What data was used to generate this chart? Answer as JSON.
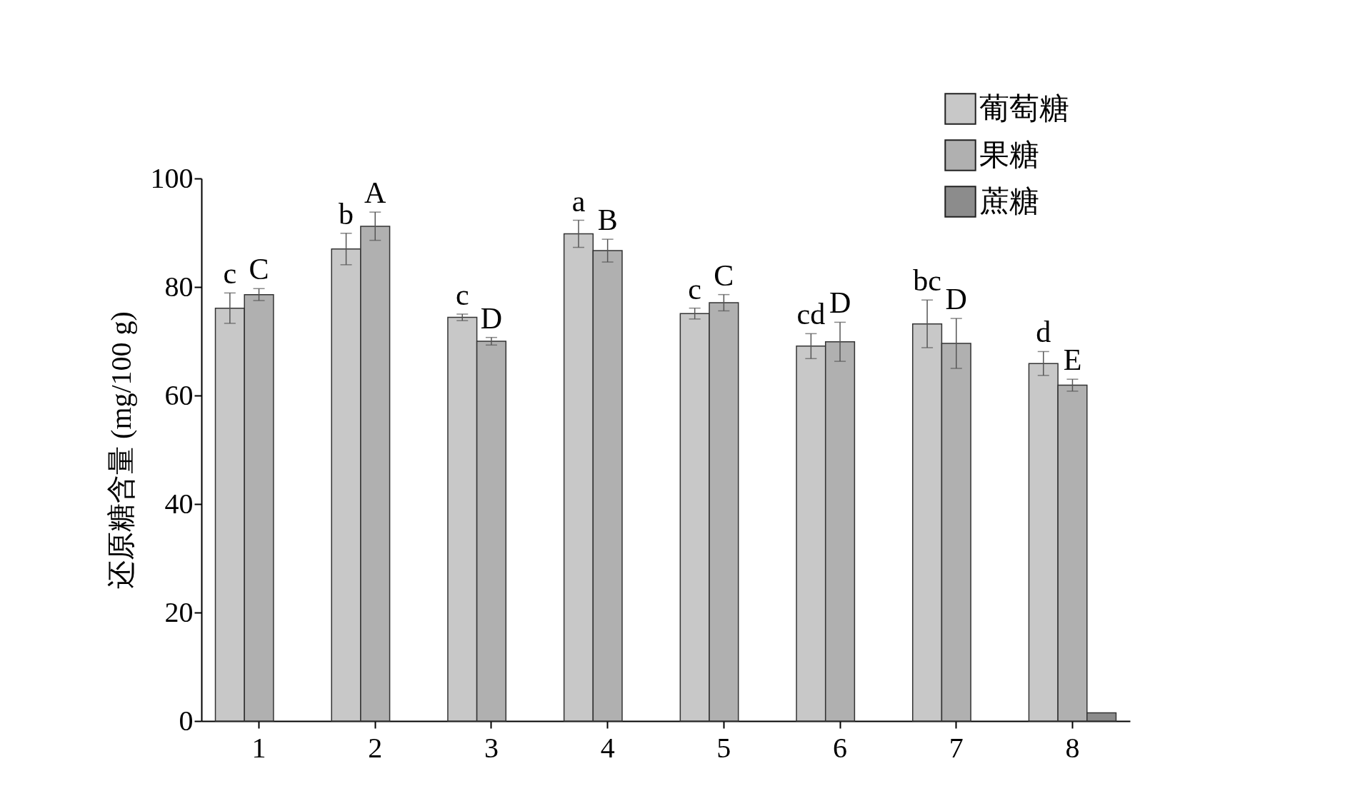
{
  "chart_data": {
    "type": "bar",
    "ylabel": "还原糖含量 (mg/100 g)",
    "categories": [
      "1",
      "2",
      "3",
      "4",
      "5",
      "6",
      "7",
      "8"
    ],
    "series": [
      {
        "name": "葡萄糖",
        "color": "#c8c8c8",
        "values": [
          76.1,
          87.0,
          74.4,
          89.8,
          75.1,
          69.1,
          73.2,
          65.9
        ],
        "errors": [
          2.8,
          2.9,
          0.6,
          2.5,
          1.0,
          2.3,
          4.4,
          2.2
        ]
      },
      {
        "name": "果糖",
        "color": "#b0b0b0",
        "values": [
          78.6,
          91.2,
          70.0,
          86.7,
          77.1,
          69.9,
          69.6,
          61.9
        ],
        "errors": [
          1.1,
          2.6,
          0.7,
          2.1,
          1.5,
          3.6,
          4.6,
          1.1
        ]
      },
      {
        "name": "蔗糖",
        "color": "#8c8c8c",
        "values": [
          null,
          null,
          null,
          null,
          null,
          null,
          null,
          1.5
        ]
      }
    ],
    "ylim": [
      0,
      100
    ],
    "yticks": [
      0,
      20,
      40,
      60,
      80,
      100
    ],
    "grid": false,
    "legend": "top right",
    "annotations": [
      "c",
      "C",
      "b",
      "A",
      "c",
      "D",
      "a",
      "B",
      "c",
      "C",
      "cd",
      "D",
      "bc",
      "D",
      "d",
      "E"
    ]
  }
}
